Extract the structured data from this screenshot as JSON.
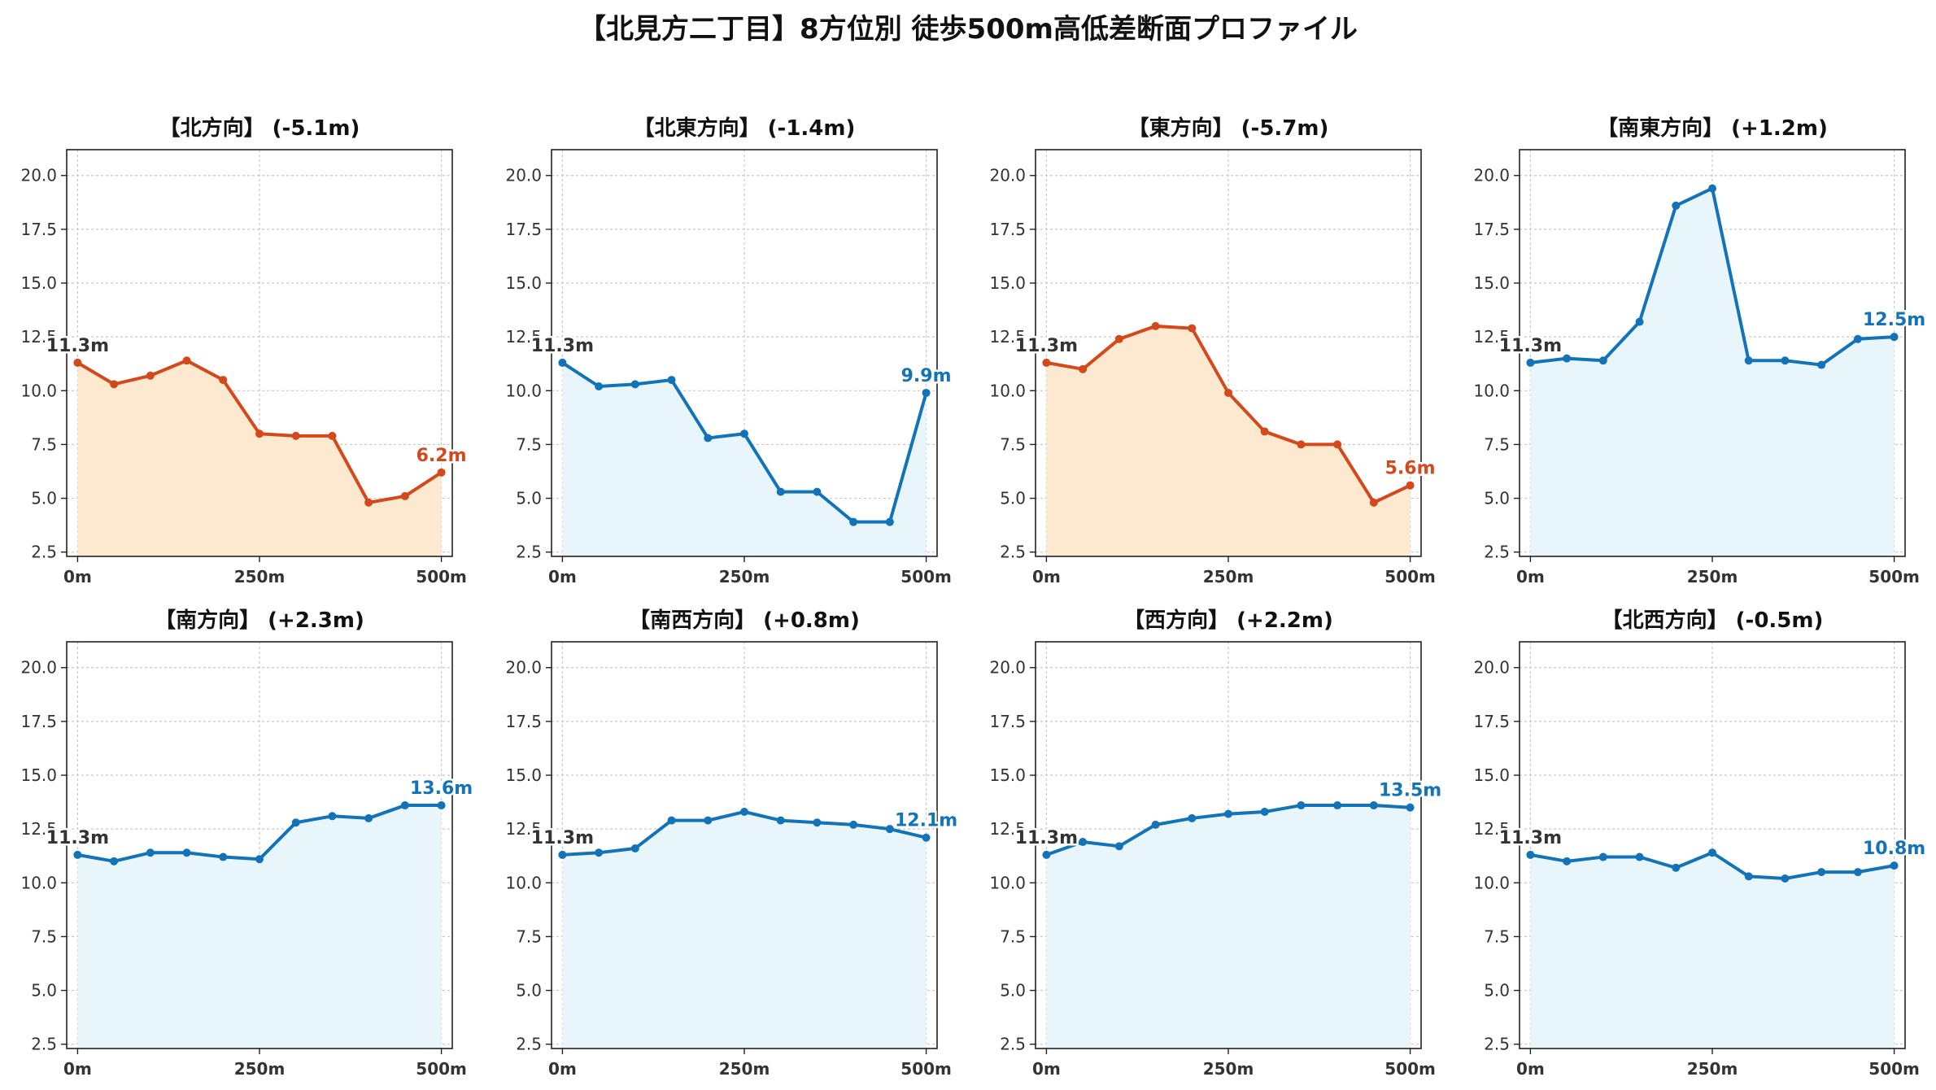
{
  "figure": {
    "title": "【北見方二丁目】8方位別 徒歩500m高低差断面プロファイル",
    "colors": {
      "down": "#d4481c",
      "down_fill": "#fde9cf",
      "up": "#1273b8",
      "up_fill": "#e8f5fb",
      "start_label": "#333333"
    }
  },
  "chart_data": [
    {
      "type": "area",
      "title": "【北方向】 (-5.1m)",
      "trend": "down",
      "x": [
        0,
        50,
        100,
        150,
        200,
        250,
        300,
        350,
        400,
        450,
        500
      ],
      "values": [
        11.3,
        10.3,
        10.7,
        11.4,
        10.5,
        8.0,
        7.9,
        7.9,
        4.8,
        5.1,
        6.2
      ],
      "start_label": "11.3m",
      "end_label": "6.2m",
      "xticks": [
        "0m",
        "250m",
        "500m"
      ],
      "yticks": [
        "2.5",
        "5.0",
        "7.5",
        "10.0",
        "12.5",
        "15.0",
        "17.5",
        "20.0"
      ],
      "ylim": [
        2.3,
        21.2
      ],
      "xlim": [
        -15,
        515
      ],
      "grid": true
    },
    {
      "type": "area",
      "title": "【北東方向】 (-1.4m)",
      "trend": "up",
      "x": [
        0,
        50,
        100,
        150,
        200,
        250,
        300,
        350,
        400,
        450,
        500
      ],
      "values": [
        11.3,
        10.2,
        10.3,
        10.5,
        7.8,
        8.0,
        5.3,
        5.3,
        3.9,
        3.9,
        9.9
      ],
      "start_label": "11.3m",
      "end_label": "9.9m",
      "xticks": [
        "0m",
        "250m",
        "500m"
      ],
      "yticks": [
        "2.5",
        "5.0",
        "7.5",
        "10.0",
        "12.5",
        "15.0",
        "17.5",
        "20.0"
      ],
      "ylim": [
        2.3,
        21.2
      ],
      "xlim": [
        -15,
        515
      ],
      "grid": true
    },
    {
      "type": "area",
      "title": "【東方向】 (-5.7m)",
      "trend": "down",
      "x": [
        0,
        50,
        100,
        150,
        200,
        250,
        300,
        350,
        400,
        450,
        500
      ],
      "values": [
        11.3,
        11.0,
        12.4,
        13.0,
        12.9,
        9.9,
        8.1,
        7.5,
        7.5,
        4.8,
        5.6
      ],
      "start_label": "11.3m",
      "end_label": "5.6m",
      "xticks": [
        "0m",
        "250m",
        "500m"
      ],
      "yticks": [
        "2.5",
        "5.0",
        "7.5",
        "10.0",
        "12.5",
        "15.0",
        "17.5",
        "20.0"
      ],
      "ylim": [
        2.3,
        21.2
      ],
      "xlim": [
        -15,
        515
      ],
      "grid": true
    },
    {
      "type": "area",
      "title": "【南東方向】 (+1.2m)",
      "trend": "up",
      "x": [
        0,
        50,
        100,
        150,
        200,
        250,
        300,
        350,
        400,
        450,
        500
      ],
      "values": [
        11.3,
        11.5,
        11.4,
        13.2,
        18.6,
        19.4,
        11.4,
        11.4,
        11.2,
        12.4,
        12.5
      ],
      "start_label": "11.3m",
      "end_label": "12.5m",
      "xticks": [
        "0m",
        "250m",
        "500m"
      ],
      "yticks": [
        "2.5",
        "5.0",
        "7.5",
        "10.0",
        "12.5",
        "15.0",
        "17.5",
        "20.0"
      ],
      "ylim": [
        2.3,
        21.2
      ],
      "xlim": [
        -15,
        515
      ],
      "grid": true
    },
    {
      "type": "area",
      "title": "【南方向】 (+2.3m)",
      "trend": "up",
      "x": [
        0,
        50,
        100,
        150,
        200,
        250,
        300,
        350,
        400,
        450,
        500
      ],
      "values": [
        11.3,
        11.0,
        11.4,
        11.4,
        11.2,
        11.1,
        12.8,
        13.1,
        13.0,
        13.6,
        13.6
      ],
      "start_label": "11.3m",
      "end_label": "13.6m",
      "xticks": [
        "0m",
        "250m",
        "500m"
      ],
      "yticks": [
        "2.5",
        "5.0",
        "7.5",
        "10.0",
        "12.5",
        "15.0",
        "17.5",
        "20.0"
      ],
      "ylim": [
        2.3,
        21.2
      ],
      "xlim": [
        -15,
        515
      ],
      "grid": true
    },
    {
      "type": "area",
      "title": "【南西方向】 (+0.8m)",
      "trend": "up",
      "x": [
        0,
        50,
        100,
        150,
        200,
        250,
        300,
        350,
        400,
        450,
        500
      ],
      "values": [
        11.3,
        11.4,
        11.6,
        12.9,
        12.9,
        13.3,
        12.9,
        12.8,
        12.7,
        12.5,
        12.1
      ],
      "start_label": "11.3m",
      "end_label": "12.1m",
      "xticks": [
        "0m",
        "250m",
        "500m"
      ],
      "yticks": [
        "2.5",
        "5.0",
        "7.5",
        "10.0",
        "12.5",
        "15.0",
        "17.5",
        "20.0"
      ],
      "ylim": [
        2.3,
        21.2
      ],
      "xlim": [
        -15,
        515
      ],
      "grid": true
    },
    {
      "type": "area",
      "title": "【西方向】 (+2.2m)",
      "trend": "up",
      "x": [
        0,
        50,
        100,
        150,
        200,
        250,
        300,
        350,
        400,
        450,
        500
      ],
      "values": [
        11.3,
        11.9,
        11.7,
        12.7,
        13.0,
        13.2,
        13.3,
        13.6,
        13.6,
        13.6,
        13.5
      ],
      "start_label": "11.3m",
      "end_label": "13.5m",
      "xticks": [
        "0m",
        "250m",
        "500m"
      ],
      "yticks": [
        "2.5",
        "5.0",
        "7.5",
        "10.0",
        "12.5",
        "15.0",
        "17.5",
        "20.0"
      ],
      "ylim": [
        2.3,
        21.2
      ],
      "xlim": [
        -15,
        515
      ],
      "grid": true
    },
    {
      "type": "area",
      "title": "【北西方向】 (-0.5m)",
      "trend": "up",
      "x": [
        0,
        50,
        100,
        150,
        200,
        250,
        300,
        350,
        400,
        450,
        500
      ],
      "values": [
        11.3,
        11.0,
        11.2,
        11.2,
        10.7,
        11.4,
        10.3,
        10.2,
        10.5,
        10.5,
        10.8
      ],
      "start_label": "11.3m",
      "end_label": "10.8m",
      "xticks": [
        "0m",
        "250m",
        "500m"
      ],
      "yticks": [
        "2.5",
        "5.0",
        "7.5",
        "10.0",
        "12.5",
        "15.0",
        "17.5",
        "20.0"
      ],
      "ylim": [
        2.3,
        21.2
      ],
      "xlim": [
        -15,
        515
      ],
      "grid": true
    }
  ]
}
